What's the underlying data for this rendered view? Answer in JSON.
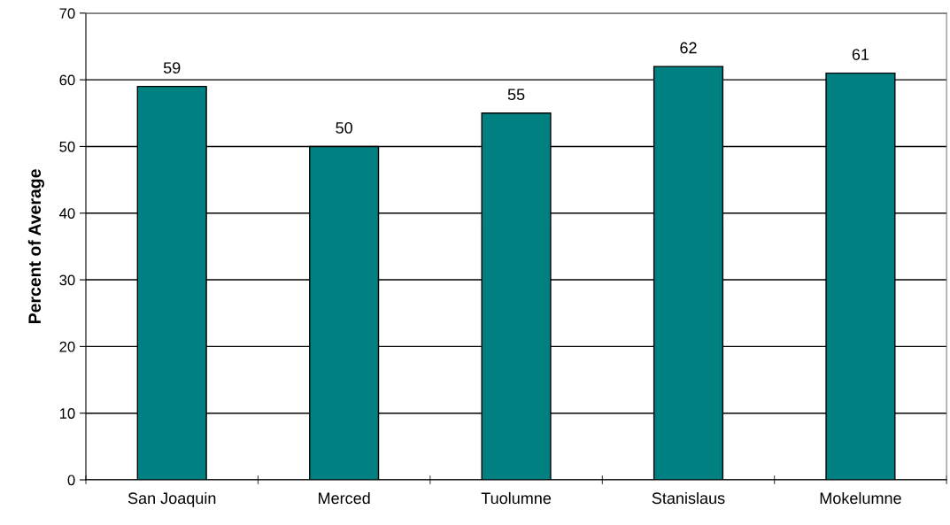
{
  "chart_data": {
    "type": "bar",
    "ylabel": "Percent of Average",
    "categories": [
      "San Joaquin",
      "Merced",
      "Tuolumne",
      "Stanislaus",
      "Mokelumne"
    ],
    "values": [
      59,
      50,
      55,
      62,
      61
    ],
    "color": "#008080",
    "ylim": [
      0,
      70
    ],
    "yticks": [
      0,
      10,
      20,
      30,
      40,
      50,
      60,
      70
    ],
    "grid": "y",
    "data_labels": true
  }
}
